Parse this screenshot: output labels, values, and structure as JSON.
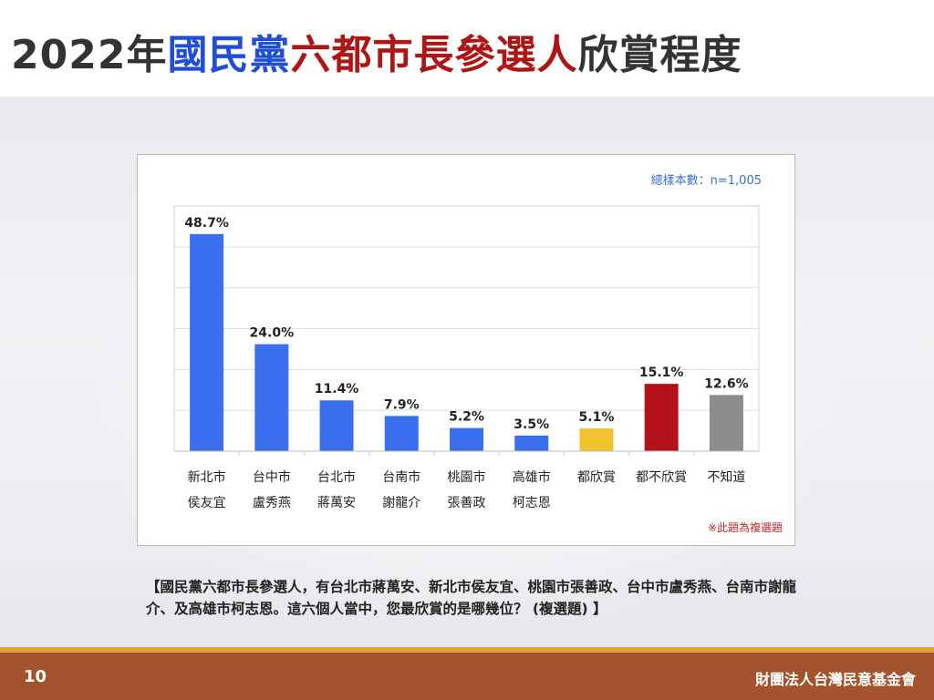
{
  "slide": {
    "title_parts": [
      {
        "text": "2022年",
        "color": "#333333"
      },
      {
        "text": "國民黨",
        "color": "#1f4fd6"
      },
      {
        "text": "六都市長參選人",
        "color": "#b01515"
      },
      {
        "text": "欣賞程度",
        "color": "#333333"
      }
    ],
    "question": "【國民黨六都市長參選人，有台北市蔣萬安、新北市侯友宜、桃園市張善政、台中市盧秀燕、台南市謝龍介、及高雄市柯志恩。這六個人當中，您最欣賞的是哪幾位？ (複選題) 】",
    "page_number": "10",
    "organization": "財團法人台灣民意基金會"
  },
  "chart_data": {
    "type": "bar",
    "title": "",
    "xlabel": "",
    "ylabel": "",
    "sample_size": "總樣本數：n=1,005",
    "note": "※此題為複選題",
    "ylim": [
      0,
      55
    ],
    "grid": true,
    "categories": [
      [
        "新北市",
        "侯友宜"
      ],
      [
        "台中市",
        "盧秀燕"
      ],
      [
        "台北市",
        "蔣萬安"
      ],
      [
        "台南市",
        "謝龍介"
      ],
      [
        "桃園市",
        "張善政"
      ],
      [
        "高雄市",
        "柯志恩"
      ],
      [
        "都欣賞"
      ],
      [
        "都不欣賞"
      ],
      [
        "不知道"
      ]
    ],
    "values": [
      48.7,
      24.0,
      11.4,
      7.9,
      5.2,
      3.5,
      5.1,
      15.1,
      12.6
    ],
    "value_labels": [
      "48.7%",
      "24.0%",
      "11.4%",
      "7.9%",
      "5.2%",
      "3.5%",
      "5.1%",
      "15.1%",
      "12.6%"
    ],
    "colors": [
      "#3a6ff0",
      "#3a6ff0",
      "#3a6ff0",
      "#3a6ff0",
      "#3a6ff0",
      "#3a6ff0",
      "#f2c12e",
      "#b3121a",
      "#8c8c8c"
    ],
    "sample_color": "#3a6fd0",
    "note_color": "#c0282c"
  }
}
